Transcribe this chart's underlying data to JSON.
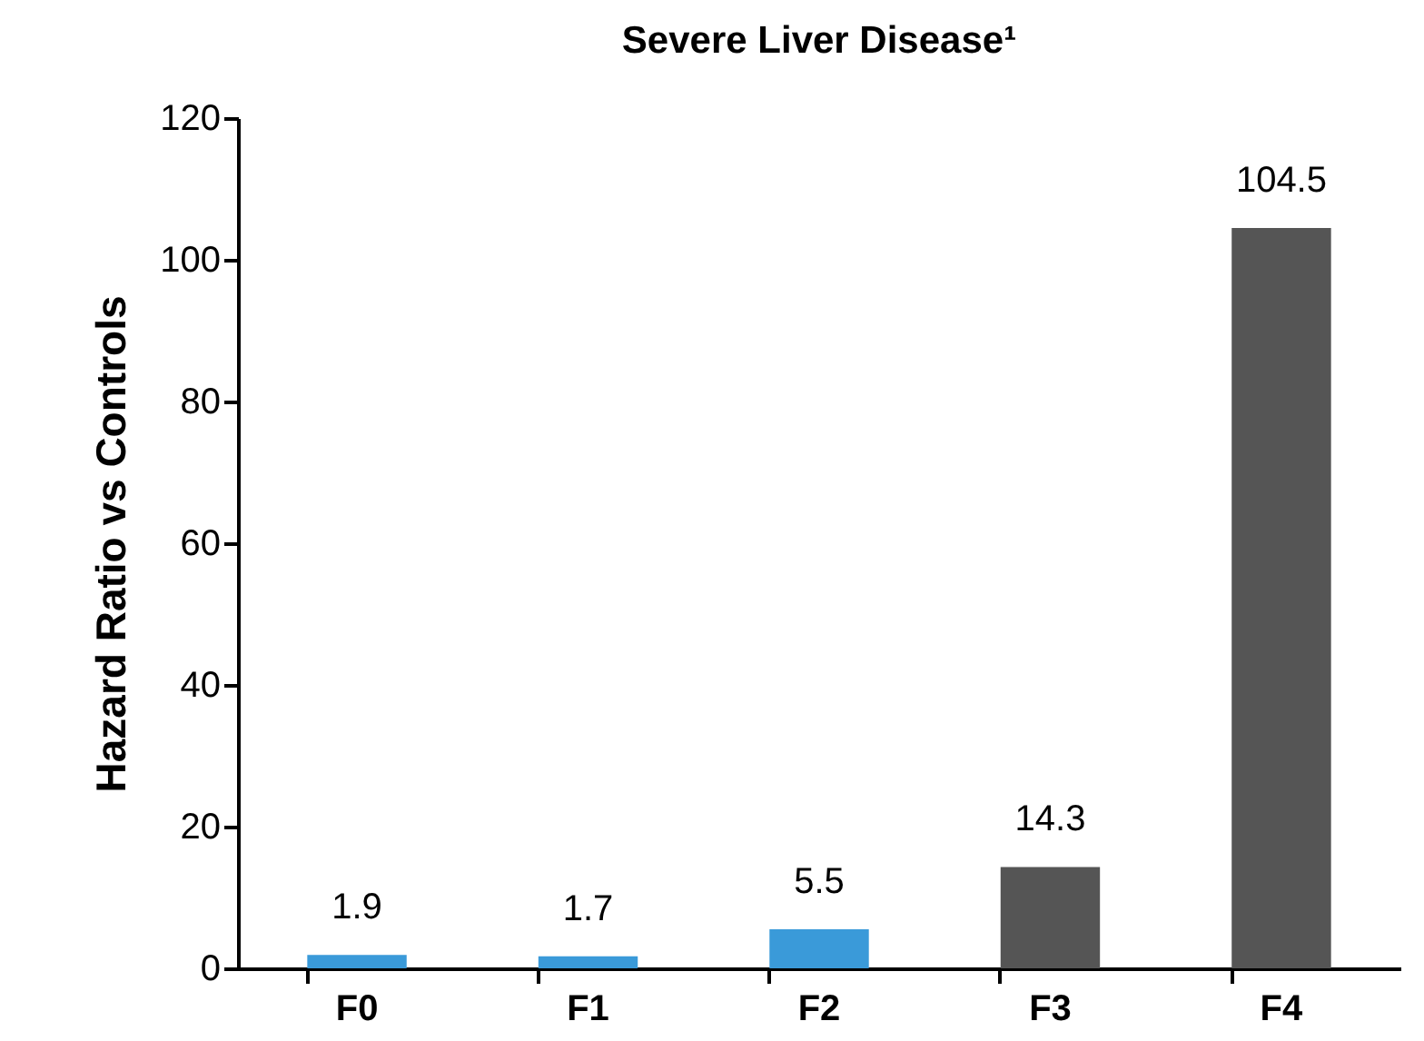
{
  "chart_data": {
    "type": "bar",
    "title": "Severe Liver Disease¹",
    "ylabel": "Hazard Ratio vs Controls",
    "categories": [
      "F0",
      "F1",
      "F2",
      "F3",
      "F4"
    ],
    "values": [
      1.9,
      1.7,
      5.5,
      14.3,
      104.5
    ],
    "colors": [
      "#3a9ad9",
      "#3a9ad9",
      "#3a9ad9",
      "#555555",
      "#555555"
    ],
    "ylim": [
      0,
      120
    ],
    "yticks": [
      0,
      20,
      40,
      60,
      80,
      100,
      120
    ],
    "data_labels": true,
    "grid": false
  }
}
